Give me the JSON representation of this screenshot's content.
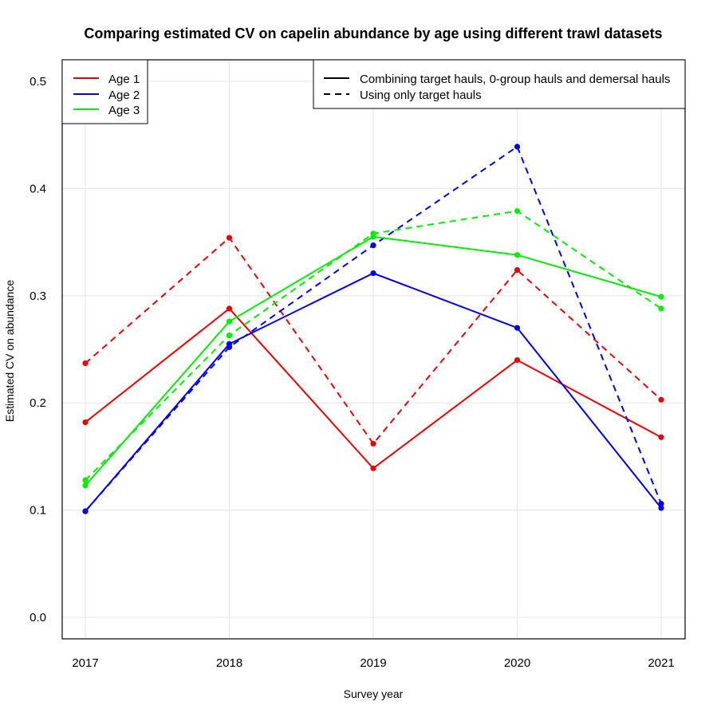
{
  "chart_data": {
    "type": "line",
    "title": "Comparing estimated CV on capelin abundance by age using different trawl datasets",
    "xlabel": "Survey year",
    "ylabel": "Estimated CV on abundance",
    "x": [
      2017,
      2018,
      2019,
      2020,
      2021
    ],
    "xtick_labels": [
      "2017",
      "2018",
      "2019",
      "2020",
      "2021"
    ],
    "yticks": [
      0.0,
      0.1,
      0.2,
      0.3,
      0.4,
      0.5
    ],
    "ytick_labels": [
      "0.0",
      "0.1",
      "0.2",
      "0.3",
      "0.4",
      "0.5"
    ],
    "ylim": [
      -0.02,
      0.52
    ],
    "grid": true,
    "legend_ages": {
      "position": "top-left",
      "entries": [
        {
          "label": "Age 1",
          "color": "#ee0000"
        },
        {
          "label": "Age 2",
          "color": "#0000ee"
        },
        {
          "label": "Age 3",
          "color": "#00ee00"
        }
      ]
    },
    "legend_datasets": {
      "position": "top-right",
      "entries": [
        {
          "label": "Combining target hauls, 0-group hauls and demersal hauls",
          "linestyle": "solid"
        },
        {
          "label": "Using only target hauls",
          "linestyle": "dashed"
        }
      ]
    },
    "series": [
      {
        "name": "Age 1 - combined",
        "age": "Age 1",
        "dataset": "combined",
        "color": "#ee0000",
        "linestyle": "solid",
        "values": [
          0.182,
          0.288,
          0.139,
          0.24,
          0.168
        ]
      },
      {
        "name": "Age 1 - target only",
        "age": "Age 1",
        "dataset": "target",
        "color": "#ee0000",
        "linestyle": "dashed",
        "values": [
          0.237,
          0.354,
          0.162,
          0.324,
          0.203
        ]
      },
      {
        "name": "Age 2 - combined",
        "age": "Age 2",
        "dataset": "combined",
        "color": "#0000ee",
        "linestyle": "solid",
        "values": [
          0.099,
          0.255,
          0.321,
          0.27,
          0.102
        ]
      },
      {
        "name": "Age 2 - target only",
        "age": "Age 2",
        "dataset": "target",
        "color": "#0000ee",
        "linestyle": "dashed",
        "values": [
          0.099,
          0.252,
          0.347,
          0.439,
          0.106
        ]
      },
      {
        "name": "Age 3 - combined",
        "age": "Age 3",
        "dataset": "combined",
        "color": "#00ee00",
        "linestyle": "solid",
        "values": [
          0.123,
          0.276,
          0.355,
          0.338,
          0.299
        ]
      },
      {
        "name": "Age 3 - target only",
        "age": "Age 3",
        "dataset": "target",
        "color": "#00ee00",
        "linestyle": "dashed",
        "values": [
          0.128,
          0.263,
          0.358,
          0.379,
          0.288
        ]
      }
    ]
  }
}
